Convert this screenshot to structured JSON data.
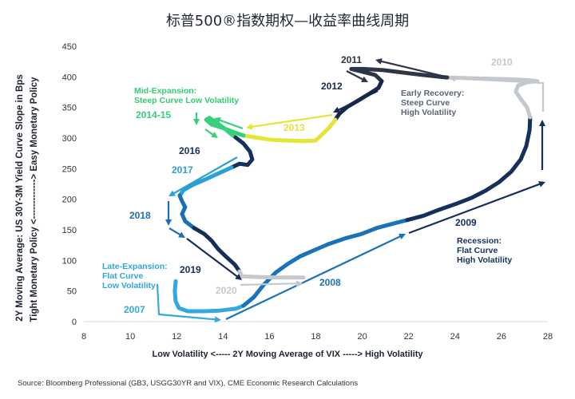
{
  "chart_data": {
    "type": "line",
    "title": "标普500®指数期权—收益率曲线周期",
    "xlabel": "Low Volatility <----- 2Y Moving Average of VIX -----> High Volatility",
    "ylabel": [
      "2Y Moving Average: US 30Y-3M Yield Curve Slope in Bps",
      "Tight Monetary Policy <-------------> Easy Monetary Policy"
    ],
    "xlim": [
      8,
      28
    ],
    "ylim": [
      0,
      450
    ],
    "x_ticks": [
      8,
      10,
      12,
      14,
      16,
      18,
      20,
      22,
      24,
      26,
      28
    ],
    "y_ticks": [
      0,
      50,
      100,
      150,
      200,
      250,
      300,
      350,
      400,
      450
    ],
    "grid": false,
    "legend": "none",
    "series": [
      {
        "name": "2007",
        "color": "#35a8df",
        "points": [
          [
            11.96,
            66
          ],
          [
            11.92,
            50
          ],
          [
            11.96,
            33
          ],
          [
            12.1,
            22
          ],
          [
            12.48,
            17
          ],
          [
            13.16,
            17
          ],
          [
            13.85,
            18
          ],
          [
            14.54,
            21
          ],
          [
            14.88,
            26
          ]
        ]
      },
      {
        "name": "2008",
        "color": "#1a72b8",
        "points": [
          [
            14.88,
            26
          ],
          [
            15.33,
            40
          ],
          [
            15.75,
            60
          ],
          [
            16.26,
            80
          ],
          [
            16.78,
            94
          ],
          [
            17.29,
            106
          ],
          [
            17.88,
            116
          ],
          [
            18.57,
            127
          ],
          [
            19.26,
            136
          ],
          [
            19.94,
            143
          ],
          [
            20.63,
            153
          ],
          [
            21.32,
            160
          ],
          [
            21.94,
            166
          ]
        ]
      },
      {
        "name": "2009",
        "color": "#16305c",
        "points": [
          [
            21.94,
            166
          ],
          [
            22.63,
            173
          ],
          [
            23.32,
            183
          ],
          [
            24.01,
            192
          ],
          [
            24.7,
            202
          ],
          [
            25.32,
            214
          ],
          [
            25.9,
            228
          ],
          [
            26.42,
            245
          ],
          [
            26.83,
            265
          ],
          [
            27.07,
            287
          ],
          [
            27.21,
            313
          ],
          [
            27.24,
            334
          ]
        ]
      },
      {
        "name": "2010",
        "color": "#c3c8cd",
        "points": [
          [
            27.24,
            334
          ],
          [
            27.1,
            350
          ],
          [
            26.83,
            364
          ],
          [
            26.62,
            376
          ],
          [
            26.72,
            386
          ],
          [
            27.1,
            391
          ],
          [
            27.55,
            393
          ],
          [
            27.1,
            395
          ],
          [
            26.4,
            396
          ],
          [
            25.4,
            397
          ],
          [
            24.5,
            398
          ],
          [
            23.66,
            399
          ]
        ]
      },
      {
        "name": "2011",
        "color": "#2c3646",
        "points": [
          [
            23.66,
            399
          ],
          [
            22.63,
            403
          ],
          [
            21.77,
            407
          ],
          [
            20.91,
            411
          ],
          [
            20.05,
            413
          ],
          [
            19.53,
            413
          ],
          [
            20.05,
            408
          ],
          [
            20.56,
            403
          ],
          [
            20.84,
            393
          ]
        ]
      },
      {
        "name": "2012",
        "color": "#17294b",
        "points": [
          [
            20.84,
            393
          ],
          [
            20.7,
            382
          ],
          [
            20.29,
            372
          ],
          [
            19.81,
            361
          ],
          [
            19.36,
            351
          ],
          [
            19.02,
            340
          ],
          [
            18.84,
            330
          ]
        ]
      },
      {
        "name": "2013",
        "color": "#e4e43a",
        "points": [
          [
            18.84,
            330
          ],
          [
            18.57,
            317
          ],
          [
            18.22,
            304
          ],
          [
            17.98,
            296
          ],
          [
            17.47,
            295
          ],
          [
            16.78,
            296
          ],
          [
            16.09,
            297
          ],
          [
            15.4,
            301
          ],
          [
            14.88,
            304
          ]
        ]
      },
      {
        "name": "2014-15",
        "color": "#35d07a",
        "points": [
          [
            14.88,
            304
          ],
          [
            14.44,
            310
          ],
          [
            13.96,
            317
          ],
          [
            13.51,
            322
          ],
          [
            13.27,
            330
          ],
          [
            13.41,
            333
          ],
          [
            13.68,
            326
          ],
          [
            14.02,
            317
          ],
          [
            14.3,
            308
          ],
          [
            14.54,
            301
          ]
        ]
      },
      {
        "name": "2016",
        "color": "#15305f",
        "points": [
          [
            14.54,
            301
          ],
          [
            14.88,
            291
          ],
          [
            15.16,
            278
          ],
          [
            15.26,
            265
          ],
          [
            15.06,
            256
          ],
          [
            14.71,
            258
          ],
          [
            14.37,
            252
          ]
        ]
      },
      {
        "name": "2017",
        "color": "#2b9fd8",
        "points": [
          [
            14.37,
            252
          ],
          [
            13.85,
            243
          ],
          [
            13.27,
            233
          ],
          [
            12.72,
            224
          ],
          [
            12.3,
            215
          ],
          [
            12.13,
            206
          ]
        ]
      },
      {
        "name": "2018",
        "color": "#1d6fb5",
        "points": [
          [
            12.13,
            206
          ],
          [
            12.23,
            197
          ],
          [
            12.37,
            187
          ],
          [
            12.23,
            176
          ],
          [
            12.37,
            164
          ],
          [
            12.75,
            153
          ]
        ]
      },
      {
        "name": "2019",
        "color": "#162f58",
        "points": [
          [
            12.75,
            153
          ],
          [
            13.2,
            143
          ],
          [
            13.51,
            132
          ],
          [
            13.78,
            119
          ],
          [
            14.13,
            106
          ],
          [
            14.51,
            93
          ],
          [
            14.71,
            82
          ]
        ]
      },
      {
        "name": "2020",
        "color": "#c5c9cd",
        "points": [
          [
            14.71,
            82
          ],
          [
            14.82,
            74
          ],
          [
            15.4,
            73
          ],
          [
            16.26,
            72
          ],
          [
            16.95,
            72
          ],
          [
            17.47,
            72
          ]
        ]
      }
    ],
    "annotations": [
      {
        "lines": [
          "Mid-Expansion:",
          "Steep Curve Low Volatility"
        ],
        "color": "#2fcf72"
      },
      {
        "lines": [
          "Early Recovery:",
          "Steep Curve",
          "High Volatility"
        ],
        "color": "#5b6573"
      },
      {
        "lines": [
          "Late-Expansion:",
          "Flat Curve",
          "Low Volatility"
        ],
        "color": "#2ea6dc"
      },
      {
        "lines": [
          "Recession:",
          "Flat Curve",
          "High Volatility"
        ],
        "color": "#14305a"
      }
    ]
  },
  "source": "Source: Bloomberg Professional (GB3, USGG30YR and VIX), CME Economic Research Calculations"
}
